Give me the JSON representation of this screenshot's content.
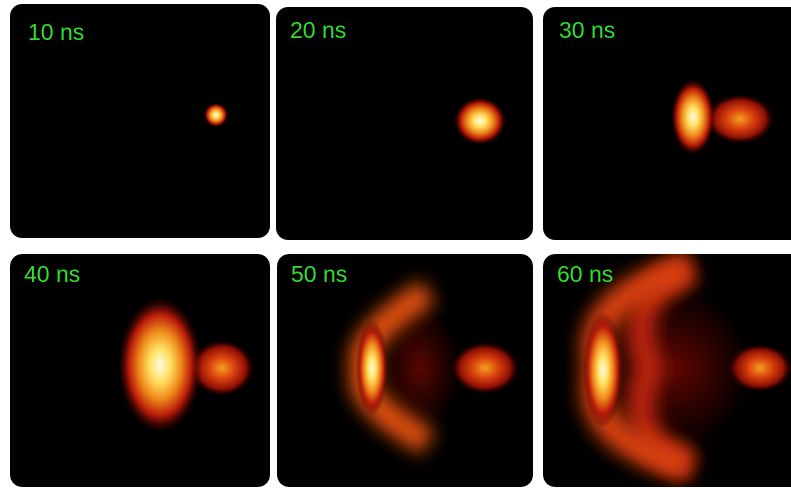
{
  "panels": [
    {
      "label": "10 ns"
    },
    {
      "label": "20 ns"
    },
    {
      "label": "30 ns"
    },
    {
      "label": "40 ns"
    },
    {
      "label": "50 ns"
    },
    {
      "label": "60 ns"
    }
  ]
}
